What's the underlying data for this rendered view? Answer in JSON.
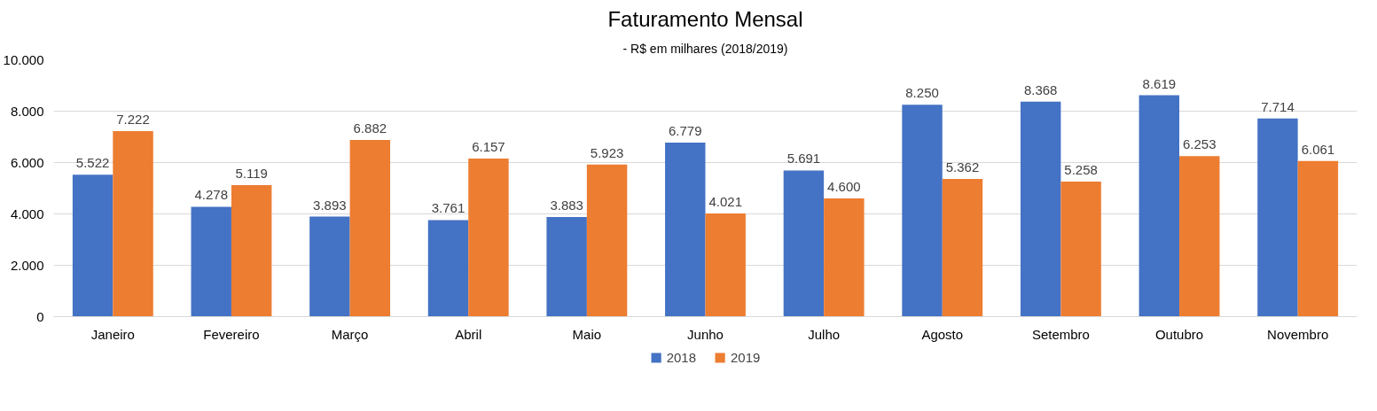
{
  "chart_data": {
    "type": "bar",
    "title": "Faturamento Mensal",
    "subtitle": "- R$ em milhares (2018/2019)",
    "categories": [
      "Janeiro",
      "Fevereiro",
      "Março",
      "Abril",
      "Maio",
      "Junho",
      "Julho",
      "Agosto",
      "Setembro",
      "Outubro",
      "Novembro"
    ],
    "series": [
      {
        "name": "2018",
        "color": "#4472c4",
        "values": [
          5522,
          4278,
          3893,
          3761,
          3883,
          6779,
          5691,
          8250,
          8368,
          8619,
          7714
        ],
        "value_labels": [
          "5.522",
          "4.278",
          "3.893",
          "3.761",
          "3.883",
          "6.779",
          "5.691",
          "8.250",
          "8.368",
          "8.619",
          "7.714"
        ]
      },
      {
        "name": "2019",
        "color": "#ed7d31",
        "values": [
          7222,
          5119,
          6882,
          6157,
          5923,
          4021,
          4600,
          5362,
          5258,
          6253,
          6061
        ],
        "value_labels": [
          "7.222",
          "5.119",
          "6.882",
          "6.157",
          "5.923",
          "4.021",
          "4.600",
          "5.362",
          "5.258",
          "6.253",
          "6.061"
        ]
      }
    ],
    "ylim": [
      0,
      10000
    ],
    "yticks": [
      {
        "value": 0,
        "label": "0"
      },
      {
        "value": 2000,
        "label": "2.000"
      },
      {
        "value": 4000,
        "label": "4.000"
      },
      {
        "value": 6000,
        "label": "6.000"
      },
      {
        "value": 8000,
        "label": "8.000"
      },
      {
        "value": 10000,
        "label": "10.000"
      }
    ],
    "grid": "y",
    "legend": "bottom"
  }
}
